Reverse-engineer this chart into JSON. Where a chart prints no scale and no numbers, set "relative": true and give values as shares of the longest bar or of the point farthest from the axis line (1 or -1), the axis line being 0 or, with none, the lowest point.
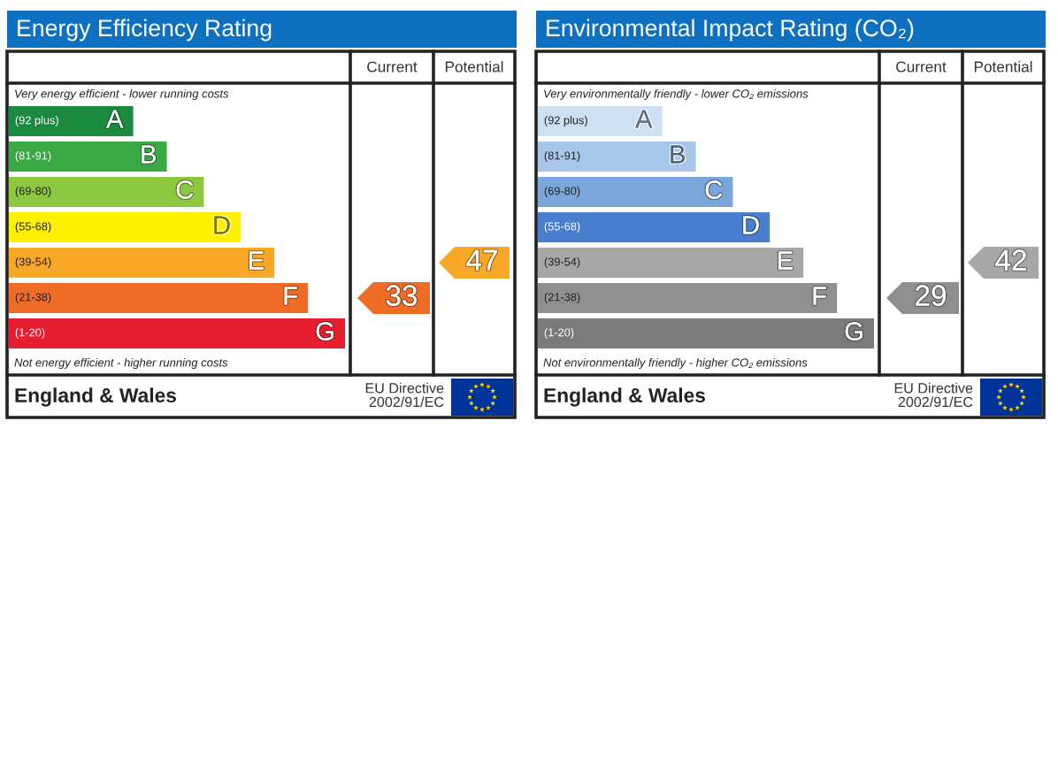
{
  "chart_data": [
    {
      "type": "bar",
      "orientation": "horizontal",
      "relative": true,
      "title": "Energy Efficiency Rating",
      "categories": [
        "(92 plus)",
        "(81-91)",
        "(69-80)",
        "(55-68)",
        "(39-54)",
        "(21-38)",
        "(1-20)"
      ],
      "y2_categories": [
        "A",
        "B",
        "C",
        "D",
        "E",
        "F",
        "G"
      ],
      "values": [
        0.37,
        0.47,
        0.58,
        0.69,
        0.79,
        0.89,
        1.0
      ],
      "colors": [
        "#1a8a3e",
        "#3aa845",
        "#8dc63f",
        "#fff000",
        "#f8a826",
        "#ee6c25",
        "#e61e2f"
      ],
      "annotations": [
        "Very energy efficient - lower running costs",
        "Not energy efficient - higher running costs",
        "Current",
        "Potential",
        "33",
        "47",
        "England & Wales",
        "EU Directive\n2002/91/EC"
      ]
    },
    {
      "type": "bar",
      "orientation": "horizontal",
      "relative": true,
      "title": "Environmental Impact Rating (CO₂)",
      "categories": [
        "(92 plus)",
        "(81-91)",
        "(69-80)",
        "(55-68)",
        "(39-54)",
        "(21-38)",
        "(1-20)"
      ],
      "y2_categories": [
        "A",
        "B",
        "C",
        "D",
        "E",
        "F",
        "G"
      ],
      "values": [
        0.37,
        0.47,
        0.58,
        0.69,
        0.79,
        0.89,
        1.0
      ],
      "colors": [
        "#cde0f4",
        "#a7c7ea",
        "#7aa6dc",
        "#4a7fd0",
        "#a7a7a7",
        "#8f8f8f",
        "#7a7a7a"
      ],
      "annotations": [
        "Very environmentally friendly - lower CO₂ emissions",
        "Not environmentally friendly - higher CO₂ emissions",
        "Current",
        "Potential",
        "29",
        "42",
        "England & Wales",
        "EU Directive\n2002/91/EC"
      ]
    }
  ]
}
